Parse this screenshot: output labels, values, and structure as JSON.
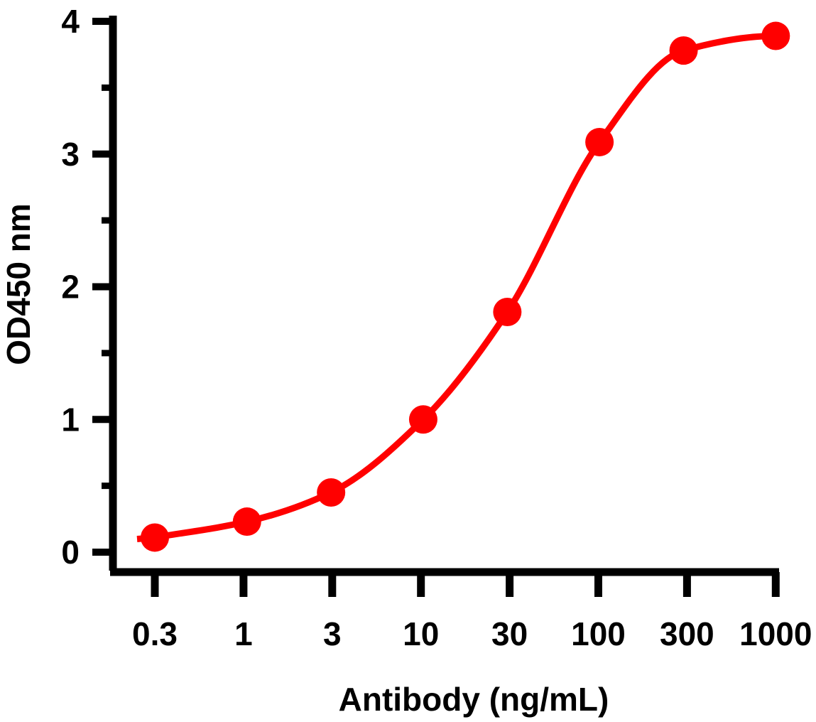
{
  "chart_data": {
    "type": "line",
    "title": "",
    "xlabel": "Antibody (ng/mL)",
    "ylabel": "OD450 nm",
    "x_scale": "log",
    "categories": [
      "0.3",
      "1",
      "3",
      "10",
      "30",
      "100",
      "300",
      "1000"
    ],
    "x": [
      0.3,
      1,
      3,
      10,
      30,
      100,
      300,
      1000
    ],
    "y": [
      0.11,
      0.23,
      0.45,
      1.0,
      1.81,
      3.09,
      3.78,
      3.89
    ],
    "ylim": [
      0,
      4
    ],
    "yticks": [
      "0",
      "1",
      "2",
      "3",
      "4"
    ],
    "grid": false,
    "legend": "none",
    "color": "#ff0000",
    "axis_color": "#000000"
  }
}
